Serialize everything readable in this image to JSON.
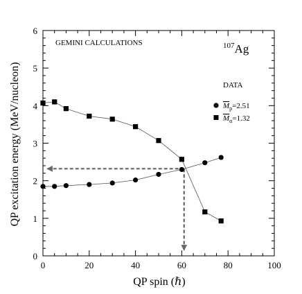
{
  "chart_data": {
    "type": "line",
    "annotation": "GEMINI CALCULATIONS",
    "nucleus": {
      "mass": "107",
      "symbol": "Ag"
    },
    "legend_title": "DATA",
    "xlabel": "QP spin (ℏ)",
    "ylabel": "QP excitation energy (MeV/nucleon)",
    "xlim": [
      0,
      100
    ],
    "ylim": [
      0,
      6
    ],
    "x_ticks": [
      "0",
      "20",
      "40",
      "60",
      "80",
      "100"
    ],
    "y_ticks": [
      "0",
      "1",
      "2",
      "3",
      "4",
      "5",
      "6"
    ],
    "series": [
      {
        "name": "M̄p=2.51",
        "legend": {
          "main": "M",
          "sub": "p",
          "value": "=2.51"
        },
        "marker": "circle",
        "points": [
          {
            "x": 0,
            "y": 1.85
          },
          {
            "x": 5,
            "y": 1.85
          },
          {
            "x": 10,
            "y": 1.87
          },
          {
            "x": 20,
            "y": 1.9
          },
          {
            "x": 30,
            "y": 1.94
          },
          {
            "x": 40,
            "y": 2.02
          },
          {
            "x": 50,
            "y": 2.17
          },
          {
            "x": 60,
            "y": 2.3
          },
          {
            "x": 70,
            "y": 2.48
          },
          {
            "x": 77,
            "y": 2.62
          }
        ]
      },
      {
        "name": "M̄α=1.32",
        "legend": {
          "main": "M",
          "sub": "α",
          "value": "=1.32"
        },
        "marker": "square",
        "points": [
          {
            "x": 0,
            "y": 4.07
          },
          {
            "x": 5,
            "y": 4.1
          },
          {
            "x": 10,
            "y": 3.92
          },
          {
            "x": 20,
            "y": 3.72
          },
          {
            "x": 30,
            "y": 3.64
          },
          {
            "x": 40,
            "y": 3.44
          },
          {
            "x": 50,
            "y": 3.07
          },
          {
            "x": 60,
            "y": 2.57
          },
          {
            "x": 70,
            "y": 1.17
          },
          {
            "x": 77,
            "y": 0.93
          }
        ]
      }
    ],
    "arrows": [
      {
        "from": [
          61,
          2.32
        ],
        "to": [
          0,
          2.32
        ]
      },
      {
        "from": [
          61,
          2.32
        ],
        "to": [
          61,
          0
        ]
      }
    ]
  }
}
